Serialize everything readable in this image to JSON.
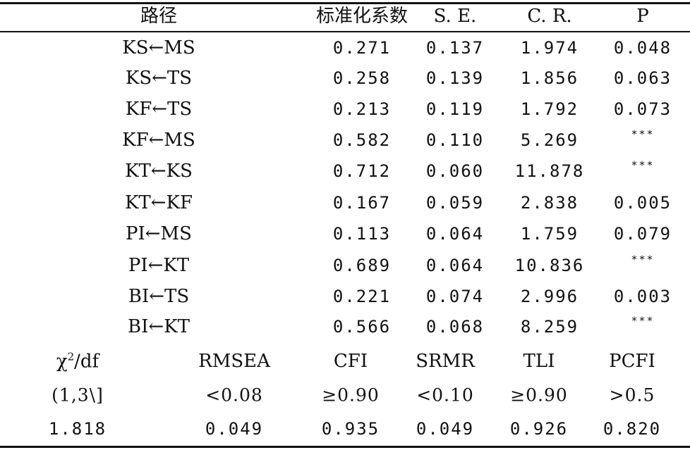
{
  "header": {
    "path": "路径",
    "coef": "标准化系数",
    "se": "S. E.",
    "cr": "C. R.",
    "p": "P"
  },
  "rows": [
    {
      "path": "KS←MS",
      "coef": "0.271",
      "se": "0.137",
      "cr": "1.974",
      "p": "0.048"
    },
    {
      "path": "KS←TS",
      "coef": "0.258",
      "se": "0.139",
      "cr": "1.856",
      "p": "0.063"
    },
    {
      "path": "KF←TS",
      "coef": "0.213",
      "se": "0.119",
      "cr": "1.792",
      "p": "0.073"
    },
    {
      "path": "KF←MS",
      "coef": "0.582",
      "se": "0.110",
      "cr": "5.269",
      "p": "***"
    },
    {
      "path": "KT←KS",
      "coef": "0.712",
      "se": "0.060",
      "cr": "11.878",
      "p": "***"
    },
    {
      "path": "KT←KF",
      "coef": "0.167",
      "se": "0.059",
      "cr": "2.838",
      "p": "0.005"
    },
    {
      "path": "PI←MS",
      "coef": "0.113",
      "se": "0.064",
      "cr": "1.759",
      "p": "0.079"
    },
    {
      "path": "PI←KT",
      "coef": "0.689",
      "se": "0.064",
      "cr": "10.836",
      "p": "***"
    },
    {
      "path": "BI←TS",
      "coef": "0.221",
      "se": "0.074",
      "cr": "2.996",
      "p": "0.003"
    },
    {
      "path": "BI←KT",
      "coef": "0.566",
      "se": "0.068",
      "cr": "8.259",
      "p": "***"
    }
  ],
  "fit": {
    "labels": {
      "chi_base": "χ",
      "chi_sup": "2",
      "chi_tail": "/df",
      "rmsea": "RMSEA",
      "cfi": "CFI",
      "srmr": "SRMR",
      "tli": "TLI",
      "pcfi": "PCFI"
    },
    "criteria": {
      "chi": "(1,3\\]",
      "rmsea": "<0.08",
      "cfi": "≥0.90",
      "srmr": "<0.10",
      "tli": "≥0.90",
      "pcfi": ">0.5"
    },
    "values": {
      "chi": "1.818",
      "rmsea": "0.049",
      "cfi": "0.935",
      "srmr": "0.049",
      "tli": "0.926",
      "pcfi": "0.820"
    }
  }
}
